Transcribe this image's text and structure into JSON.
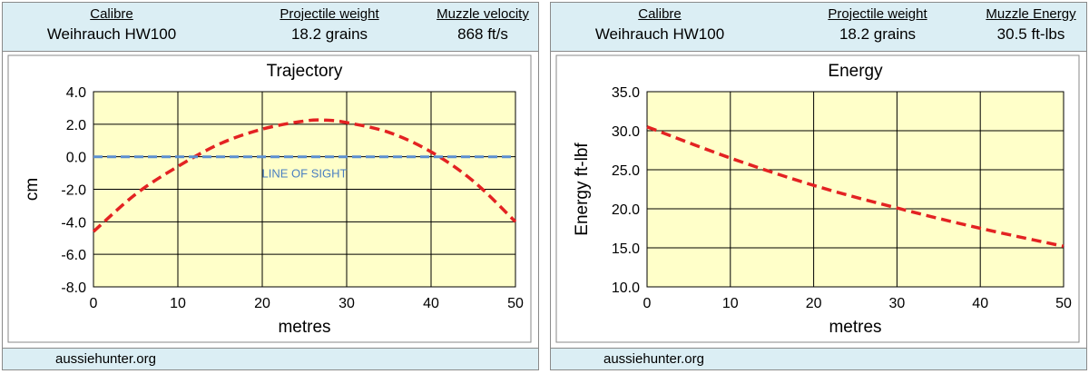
{
  "left_panel": {
    "header": {
      "calibre_label": "Calibre",
      "calibre_value": "Weihrauch HW100",
      "weight_label": "Projectile weight",
      "weight_value": "18.2 grains",
      "third_label": "Muzzle velocity",
      "third_value": "868 ft/s"
    },
    "footer": "aussiehunter.org"
  },
  "right_panel": {
    "header": {
      "calibre_label": "Calibre",
      "calibre_value": "Weihrauch HW100",
      "weight_label": "Projectile weight",
      "weight_value": "18.2 grains",
      "third_label": "Muzzle Energy",
      "third_value": "30.5 ft-lbs"
    },
    "footer": "aussiehunter.org"
  },
  "colors": {
    "header_bg": "#dbeef4",
    "plot_bg": "#ffffc9",
    "curve": "#e32222",
    "sight_line": "#5b8fd1",
    "grid": "#000000"
  },
  "chart_data": [
    {
      "type": "line",
      "title": "Trajectory",
      "xlabel": "metres",
      "ylabel": "cm",
      "xlim": [
        0,
        50
      ],
      "ylim": [
        -8,
        4
      ],
      "x_ticks": [
        0,
        10,
        20,
        30,
        40,
        50
      ],
      "x_tick_labels": [
        "0",
        "10",
        "20",
        "30",
        "40",
        "50"
      ],
      "y_ticks": [
        4,
        2,
        0,
        -2,
        -4,
        -6,
        -8
      ],
      "y_tick_labels": [
        "4.0",
        "2.0",
        "0.0",
        "-2.0",
        "-4.0",
        "-6.0",
        "-8.0"
      ],
      "grid": true,
      "annotation": "LINE OF SIGHT",
      "series": [
        {
          "style": "dashed-red",
          "x": [
            0,
            5,
            10,
            15,
            20,
            25,
            27.5,
            30,
            35,
            40,
            45,
            50
          ],
          "y": [
            -4.6,
            -2.3,
            -0.6,
            0.8,
            1.7,
            2.2,
            2.25,
            2.1,
            1.5,
            0.3,
            -1.5,
            -4.0
          ]
        },
        {
          "style": "dashed-blue",
          "x": [
            0,
            50
          ],
          "y": [
            0,
            0
          ]
        }
      ]
    },
    {
      "type": "line",
      "title": "Energy",
      "xlabel": "metres",
      "ylabel": "Energy ft-lbf",
      "xlim": [
        0,
        50
      ],
      "ylim": [
        10,
        35
      ],
      "x_ticks": [
        0,
        10,
        20,
        30,
        40,
        50
      ],
      "x_tick_labels": [
        "0",
        "10",
        "20",
        "30",
        "40",
        "50"
      ],
      "y_ticks": [
        35,
        30,
        25,
        20,
        15,
        10
      ],
      "y_tick_labels": [
        "35.0",
        "30.0",
        "25.0",
        "20.0",
        "15.0",
        "10.0"
      ],
      "grid": true,
      "series": [
        {
          "style": "dashed-red",
          "x": [
            0,
            10,
            20,
            30,
            40,
            50
          ],
          "y": [
            30.5,
            26.5,
            23.0,
            20.1,
            17.5,
            15.2
          ]
        }
      ]
    }
  ]
}
